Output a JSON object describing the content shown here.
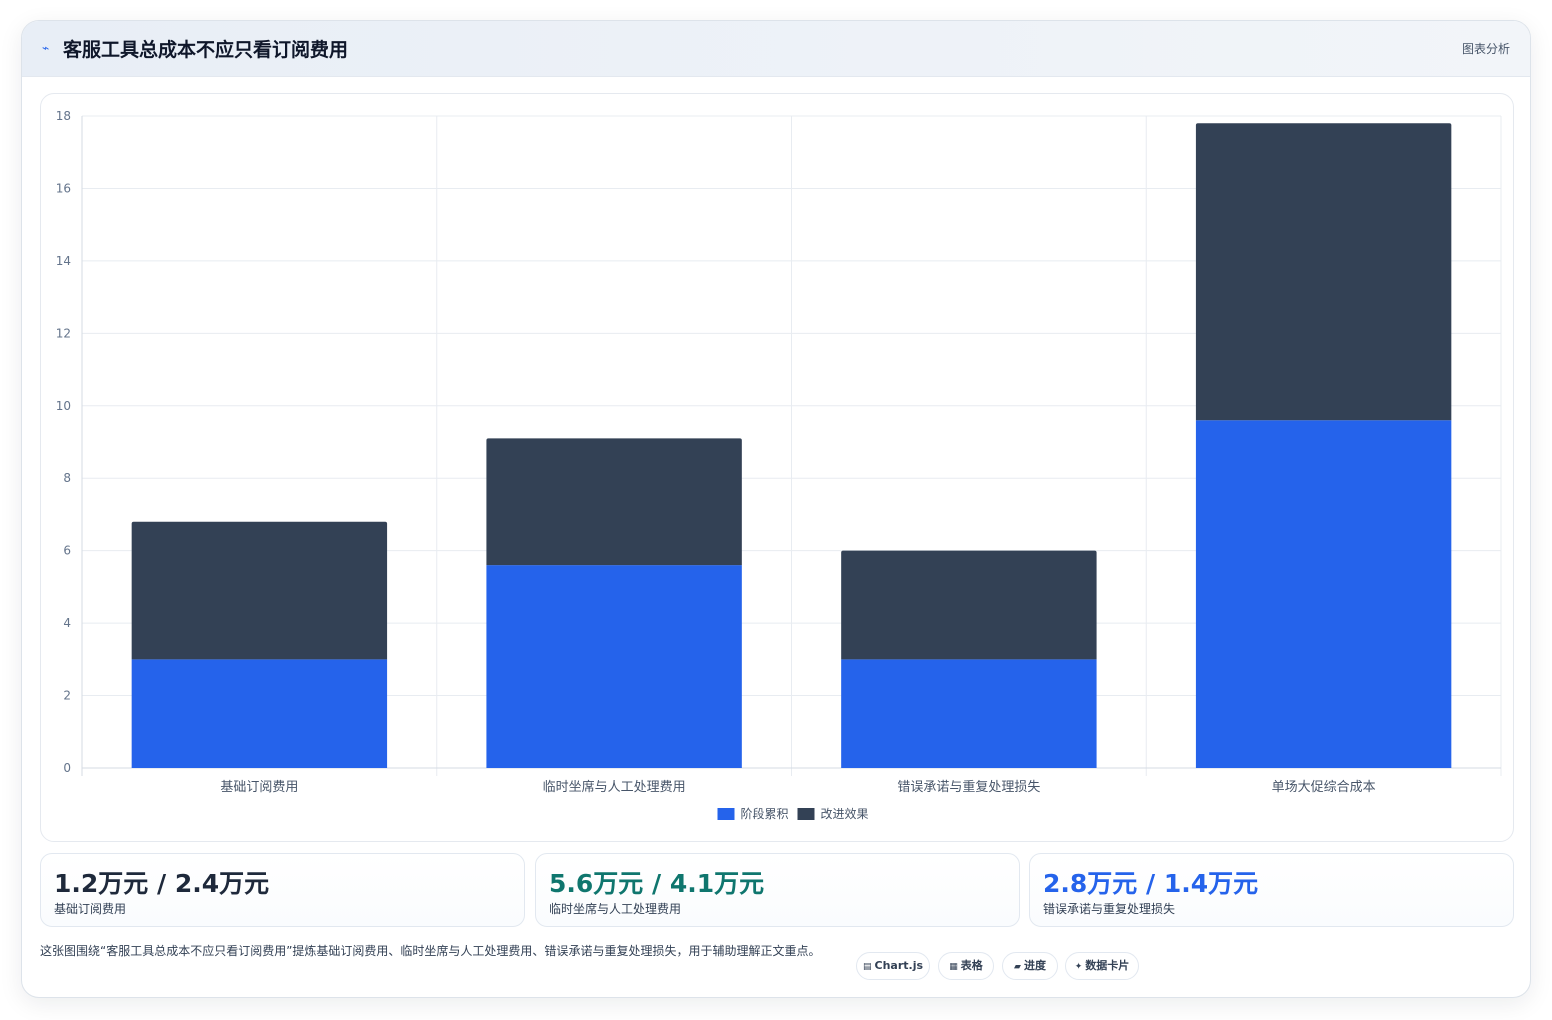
{
  "header": {
    "icon": "trend-line-icon",
    "title": "客服工具总成本不应只看订阅费用",
    "tag": "图表分析"
  },
  "chart_data": {
    "type": "bar",
    "stacked": true,
    "categories": [
      "基础订阅费用",
      "临时坐席与人工处理费用",
      "错误承诺与重复处理损失",
      "单场大促综合成本"
    ],
    "series": [
      {
        "name": "阶段累积",
        "color": "#2563eb",
        "values": [
          3.0,
          5.6,
          3.0,
          9.6
        ]
      },
      {
        "name": "改进效果",
        "color": "#334155",
        "values": [
          3.8,
          3.5,
          3.0,
          8.2
        ]
      }
    ],
    "ylim": [
      0,
      18
    ],
    "yticks": [
      0,
      2,
      4,
      6,
      8,
      10,
      12,
      14,
      16,
      18
    ],
    "grid": true,
    "legend": "bottom-center"
  },
  "stats": [
    {
      "value": "1.2万元 / 2.4万元",
      "label": "基础订阅费用",
      "color": "#1e293b"
    },
    {
      "value": "5.6万元 / 4.1万元",
      "label": "临时坐席与人工处理费用",
      "color": "#0f766e"
    },
    {
      "value": "2.8万元 / 1.4万元",
      "label": "错误承诺与重复处理损失",
      "color": "#2563eb"
    }
  ],
  "footer": {
    "text": "这张图围绕“客服工具总成本不应只看订阅费用”提炼基础订阅费用、临时坐席与人工处理费用、错误承诺与重复处理损失，用于辅助理解正文重点。"
  },
  "chips": [
    {
      "icon": "chart-icon",
      "glyph": "▤",
      "label": "Chart.js"
    },
    {
      "icon": "table-icon",
      "glyph": "▦",
      "label": "表格"
    },
    {
      "icon": "progress-icon",
      "glyph": "▰",
      "label": "进度"
    },
    {
      "icon": "sparkle-icon",
      "glyph": "✦",
      "label": "数据卡片"
    }
  ]
}
